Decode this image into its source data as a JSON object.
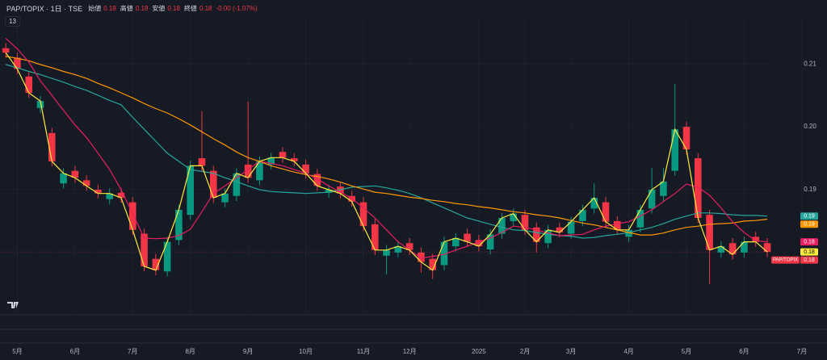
{
  "chart_data": {
    "type": "candlestick",
    "title": "PAP/TOPIX · 1日 · TSE",
    "legend_items": [
      {
        "label": "始値",
        "value": "0.18"
      },
      {
        "label": "高値",
        "value": "0.18"
      },
      {
        "label": "安値",
        "value": "0.18"
      },
      {
        "label": "終値",
        "value": "0.18"
      }
    ],
    "change": "-0.00 (-1.07%)",
    "indicator_count": "13",
    "symbol_short": "PAP/TOPIX",
    "last_price_label": "0.18",
    "up_color": "#089981",
    "down_color": "#f23645",
    "grid": true,
    "ylim": [
      0.1701,
      0.2176
    ],
    "yticks": [
      0.19,
      {
        "value": 0.2,
        "label": "0.20"
      },
      0.21
    ],
    "categories": [
      null,
      "5月",
      null,
      null,
      null,
      null,
      "6月",
      null,
      null,
      null,
      null,
      "7月",
      null,
      null,
      null,
      null,
      "8月",
      null,
      null,
      null,
      null,
      "9月",
      null,
      null,
      null,
      null,
      "10月",
      null,
      null,
      null,
      null,
      "11月",
      null,
      null,
      null,
      "12月",
      null,
      null,
      null,
      null,
      null,
      "2025",
      null,
      null,
      null,
      "2月",
      null,
      null,
      null,
      "3月",
      null,
      null,
      null,
      null,
      "4月",
      null,
      null,
      null,
      null,
      "5月",
      null,
      null,
      null,
      null,
      "6月",
      null,
      null,
      null,
      null,
      "7月"
    ],
    "open": [
      0.2125,
      0.211,
      0.208,
      0.203,
      0.199,
      0.191,
      0.193,
      0.1915,
      0.19,
      0.1885,
      0.1895,
      0.188,
      0.183,
      0.179,
      0.177,
      0.182,
      0.186,
      0.195,
      0.193,
      0.188,
      0.189,
      0.194,
      0.1915,
      0.194,
      0.196,
      0.195,
      0.194,
      0.1925,
      0.1895,
      0.1905,
      0.189,
      0.188,
      0.1845,
      0.1795,
      0.18,
      0.1815,
      0.18,
      0.179,
      0.178,
      0.181,
      0.183,
      0.182,
      0.1805,
      0.183,
      0.185,
      0.186,
      0.184,
      0.1815,
      0.184,
      0.183,
      0.185,
      0.187,
      0.188,
      0.185,
      0.1825,
      0.184,
      0.187,
      0.189,
      0.193,
      0.2,
      0.195,
      0.186,
      0.18,
      0.1815,
      0.18,
      0.1825,
      0.1815,
      null,
      null,
      null
    ],
    "high": [
      0.2133,
      0.2118,
      0.2088,
      0.2049,
      0.1998,
      0.1934,
      0.1938,
      0.1923,
      0.1908,
      0.1902,
      0.1903,
      0.1888,
      0.1838,
      0.1798,
      0.1825,
      0.1876,
      0.1946,
      0.2025,
      0.1938,
      0.1902,
      0.1934,
      0.204,
      0.1953,
      0.1959,
      0.1968,
      0.1958,
      0.1948,
      0.1933,
      0.1908,
      0.1913,
      0.1898,
      0.1888,
      0.1853,
      0.1812,
      0.1818,
      0.1823,
      0.1808,
      0.1798,
      0.1825,
      0.1831,
      0.1838,
      0.1828,
      0.1837,
      0.1863,
      0.187,
      0.1868,
      0.1848,
      0.1844,
      0.1848,
      0.1857,
      0.1876,
      0.191,
      0.1888,
      0.1858,
      0.1844,
      0.1876,
      0.1935,
      0.1935,
      0.2068,
      0.2008,
      0.1958,
      0.1868,
      0.1818,
      0.1823,
      0.1825,
      0.1833,
      0.1823,
      null,
      null,
      null
    ],
    "low": [
      0.211,
      0.2084,
      0.2046,
      0.2022,
      0.1937,
      0.1902,
      0.1911,
      0.1898,
      0.1886,
      0.1877,
      0.1879,
      0.1828,
      0.177,
      0.1764,
      0.1762,
      0.1812,
      0.1852,
      0.193,
      0.1879,
      0.1872,
      0.1882,
      0.1911,
      0.1907,
      0.1932,
      0.1943,
      0.1937,
      0.1918,
      0.1898,
      0.1887,
      0.1886,
      0.1873,
      0.1834,
      0.1796,
      0.1765,
      0.1792,
      0.1796,
      0.1768,
      0.1758,
      0.1772,
      0.1802,
      0.1809,
      0.1802,
      0.1797,
      0.1822,
      0.1842,
      0.1828,
      0.18,
      0.1807,
      0.1824,
      0.1822,
      0.1842,
      0.1862,
      0.1841,
      0.1828,
      0.1817,
      0.1832,
      0.1862,
      0.1882,
      0.1922,
      0.1956,
      0.1847,
      0.175,
      0.1792,
      0.1789,
      0.1792,
      0.1809,
      0.1793,
      null,
      null,
      null
    ],
    "close": [
      0.2118,
      0.2092,
      0.2054,
      0.2041,
      0.1945,
      0.1926,
      0.1919,
      0.1906,
      0.1894,
      0.1894,
      0.1887,
      0.1836,
      0.1778,
      0.1772,
      0.1817,
      0.1868,
      0.1938,
      0.1938,
      0.1887,
      0.1894,
      0.1926,
      0.1919,
      0.1945,
      0.1951,
      0.1951,
      0.1945,
      0.1926,
      0.1906,
      0.19,
      0.1894,
      0.1881,
      0.1842,
      0.1804,
      0.1804,
      0.181,
      0.1804,
      0.1785,
      0.1772,
      0.1817,
      0.1823,
      0.1817,
      0.181,
      0.1829,
      0.1855,
      0.1862,
      0.1836,
      0.1817,
      0.1836,
      0.1832,
      0.1849,
      0.1868,
      0.1887,
      0.1849,
      0.1836,
      0.1836,
      0.1868,
      0.19,
      0.1913,
      0.1996,
      0.1964,
      0.1855,
      0.1804,
      0.181,
      0.1797,
      0.1817,
      0.1817,
      0.1801,
      null,
      null,
      null
    ],
    "series": [
      {
        "color": "#26a69a",
        "last_label": "0.19",
        "values": [
          0.2099,
          0.2094,
          0.2088,
          0.2083,
          0.2077,
          0.2071,
          0.2064,
          0.2058,
          0.205,
          0.2042,
          0.2035,
          0.2015,
          0.1996,
          0.1977,
          0.1958,
          0.1945,
          0.1932,
          0.1929,
          0.1926,
          0.1919,
          0.1913,
          0.1906,
          0.19,
          0.1897,
          0.1896,
          0.1895,
          0.1894,
          0.1895,
          0.1896,
          0.19,
          0.1904,
          0.1905,
          0.1906,
          0.1903,
          0.1899,
          0.1894,
          0.1887,
          0.1879,
          0.1871,
          0.1863,
          0.1855,
          0.185,
          0.1845,
          0.184,
          0.1836,
          0.1835,
          0.1832,
          0.1829,
          0.1827,
          0.1826,
          0.1823,
          0.1824,
          0.1827,
          0.1829,
          0.1832,
          0.1836,
          0.184,
          0.1846,
          0.1853,
          0.1858,
          0.1863,
          0.1863,
          0.1862,
          0.186,
          0.1859,
          0.1859,
          0.1858,
          null,
          null,
          null
        ]
      },
      {
        "color": "#ff9800",
        "last_label": "0.19",
        "values": [
          0.2112,
          0.2109,
          0.2105,
          0.2099,
          0.2094,
          0.2088,
          0.2083,
          0.2077,
          0.2069,
          0.2062,
          0.2054,
          0.2046,
          0.2037,
          0.2029,
          0.2022,
          0.2013,
          0.2003,
          0.1992,
          0.1981,
          0.1971,
          0.196,
          0.1951,
          0.1945,
          0.1938,
          0.1933,
          0.1928,
          0.1924,
          0.1921,
          0.1917,
          0.1912,
          0.1906,
          0.1901,
          0.1896,
          0.1894,
          0.1891,
          0.1888,
          0.1886,
          0.1883,
          0.1881,
          0.1878,
          0.1876,
          0.1873,
          0.1871,
          0.1868,
          0.1865,
          0.1863,
          0.186,
          0.1858,
          0.1855,
          0.1851,
          0.1847,
          0.1844,
          0.184,
          0.1836,
          0.1832,
          0.1828,
          0.1828,
          0.1831,
          0.1836,
          0.184,
          0.1842,
          0.1845,
          0.1846,
          0.1847,
          0.185,
          0.1851,
          0.1853,
          null,
          null,
          null
        ]
      },
      {
        "color": "#e91e63",
        "last_label": "0.18",
        "values": [
          0.2141,
          0.2124,
          0.2103,
          0.2073,
          0.205,
          0.2026,
          0.2003,
          0.1983,
          0.1958,
          0.1932,
          0.19,
          0.1862,
          0.1823,
          0.1822,
          0.1823,
          0.1827,
          0.1837,
          0.1865,
          0.1894,
          0.1906,
          0.1919,
          0.1932,
          0.1945,
          0.1942,
          0.1938,
          0.1932,
          0.1926,
          0.1917,
          0.1906,
          0.1896,
          0.1886,
          0.1871,
          0.1855,
          0.1836,
          0.1817,
          0.1804,
          0.1791,
          0.1794,
          0.1797,
          0.1804,
          0.181,
          0.1817,
          0.1823,
          0.1832,
          0.1842,
          0.184,
          0.1836,
          0.1831,
          0.1827,
          0.1828,
          0.1829,
          0.1836,
          0.1842,
          0.1846,
          0.1849,
          0.1858,
          0.1868,
          0.1881,
          0.1894,
          0.1909,
          0.1904,
          0.1891,
          0.1871,
          0.1849,
          0.1832,
          0.1819,
          0.1817,
          null,
          null,
          null
        ]
      },
      {
        "color": "#ffeb3b",
        "last_label": "0.18",
        "values": [
          0.2118,
          0.2092,
          0.2054,
          0.2041,
          0.1945,
          0.1926,
          0.1919,
          0.1906,
          0.1894,
          0.1894,
          0.1887,
          0.1836,
          0.1778,
          0.1772,
          0.1817,
          0.1868,
          0.1938,
          0.1938,
          0.1887,
          0.1894,
          0.1926,
          0.1919,
          0.1945,
          0.1951,
          0.1951,
          0.1945,
          0.1926,
          0.1906,
          0.19,
          0.1894,
          0.1881,
          0.1842,
          0.1804,
          0.1804,
          0.181,
          0.1804,
          0.1785,
          0.1772,
          0.1817,
          0.1823,
          0.1817,
          0.181,
          0.1829,
          0.1855,
          0.1862,
          0.1836,
          0.1817,
          0.1836,
          0.1832,
          0.1849,
          0.1868,
          0.1887,
          0.1849,
          0.1836,
          0.1836,
          0.1868,
          0.19,
          0.1913,
          0.1996,
          0.1964,
          0.1855,
          0.1804,
          0.181,
          0.1797,
          0.1817,
          0.1817,
          0.1801,
          null,
          null,
          null
        ]
      }
    ]
  }
}
